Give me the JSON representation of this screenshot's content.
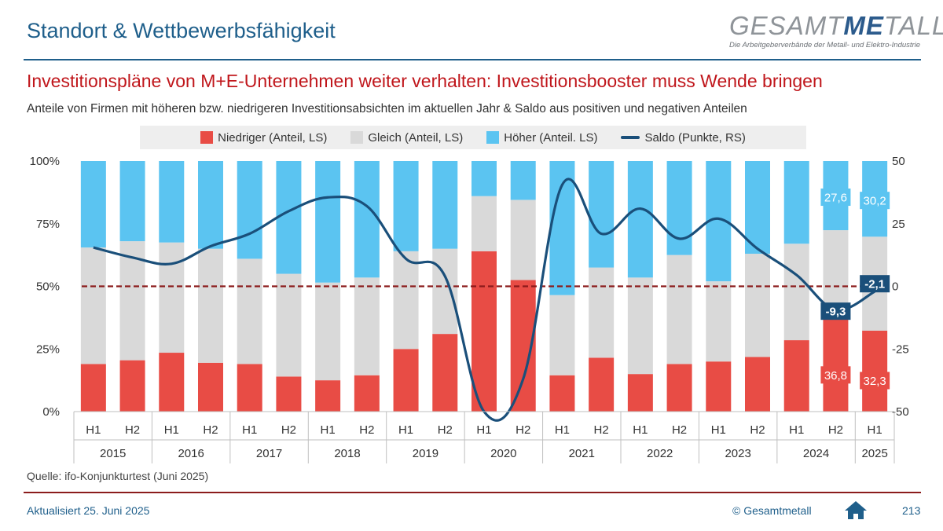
{
  "header": {
    "title": "Standort & Wettbewerbsfähigkeit",
    "logo_main": "GESAMT",
    "logo_me": "ME",
    "logo_end": "TALL",
    "logo_tagline": "Die Arbeitgeberverbände der Metall- und Elektro-Industrie"
  },
  "headline": "Investitionspläne von M+E-Unternehmen weiter verhalten: Investitionsbooster muss Wende bringen",
  "subtitle": "Anteile von Firmen mit höheren bzw. niedrigeren Investitionsabsichten im aktuellen Jahr & Saldo aus positiven und negativen Anteilen",
  "legend": {
    "niedriger": "Niedriger (Anteil, LS)",
    "gleich": "Gleich (Anteil, LS)",
    "hoeher": "Höher (Anteil. LS)",
    "saldo": "Saldo (Punkte, RS)"
  },
  "colors": {
    "niedriger": "#e84c45",
    "gleich": "#d9d9d9",
    "hoeher": "#5bc4f1",
    "saldo": "#1a4f7a",
    "zero_line": "#8b1a1a"
  },
  "chart_data": {
    "type": "bar",
    "stacked": true,
    "categories": [
      "H1",
      "H2",
      "H1",
      "H2",
      "H1",
      "H2",
      "H1",
      "H2",
      "H1",
      "H2",
      "H1",
      "H2",
      "H1",
      "H2",
      "H1",
      "H2",
      "H1",
      "H2",
      "H1",
      "H2",
      "H1"
    ],
    "years": [
      {
        "label": "2015",
        "span": 2
      },
      {
        "label": "2016",
        "span": 2
      },
      {
        "label": "2017",
        "span": 2
      },
      {
        "label": "2018",
        "span": 2
      },
      {
        "label": "2019",
        "span": 2
      },
      {
        "label": "2020",
        "span": 2
      },
      {
        "label": "2021",
        "span": 2
      },
      {
        "label": "2022",
        "span": 2
      },
      {
        "label": "2023",
        "span": 2
      },
      {
        "label": "2024",
        "span": 2
      },
      {
        "label": "2025",
        "span": 1
      }
    ],
    "series": [
      {
        "name": "Niedriger (Anteil, LS)",
        "axis": "left",
        "values": [
          19,
          20.5,
          23.5,
          19.5,
          19,
          14,
          12.5,
          14.5,
          25,
          31,
          64,
          52.5,
          14.5,
          21.5,
          15,
          19,
          20,
          21.8,
          28.5,
          36.8,
          32.3
        ]
      },
      {
        "name": "Gleich (Anteil, LS)",
        "axis": "left",
        "values": [
          46.5,
          47.5,
          44,
          45.5,
          42,
          41,
          39,
          39,
          39,
          34,
          22,
          32,
          32,
          36,
          38.5,
          43.5,
          32,
          41.2,
          38.5,
          35.6,
          37.5
        ]
      },
      {
        "name": "Höher (Anteil. LS)",
        "axis": "left",
        "values": [
          34.5,
          32,
          32.5,
          35,
          39,
          45,
          48.5,
          46.5,
          36,
          35,
          14,
          15.5,
          53.5,
          42.5,
          46.5,
          37.5,
          48,
          37,
          33,
          27.6,
          30.2
        ]
      },
      {
        "name": "Saldo (Punkte, RS)",
        "axis": "right",
        "type": "line",
        "values": [
          15.5,
          11.5,
          9,
          16,
          21,
          30,
          35.5,
          32,
          11,
          4,
          -50,
          -37,
          40.5,
          21,
          31,
          19,
          27,
          15,
          4.5,
          -9.3,
          -2.1
        ]
      }
    ],
    "data_labels": [
      {
        "series": "Höher (Anteil. LS)",
        "index": 19,
        "text": "27,6"
      },
      {
        "series": "Höher (Anteil. LS)",
        "index": 20,
        "text": "30,2"
      },
      {
        "series": "Niedriger (Anteil, LS)",
        "index": 19,
        "text": "36,8"
      },
      {
        "series": "Niedriger (Anteil, LS)",
        "index": 20,
        "text": "32,3"
      },
      {
        "series": "Saldo (Punkte, RS)",
        "index": 19,
        "text": "-9,3"
      },
      {
        "series": "Saldo (Punkte, RS)",
        "index": 20,
        "text": "-2,1"
      }
    ],
    "y_left": {
      "min": 0,
      "max": 100,
      "ticks": [
        "0%",
        "25%",
        "50%",
        "75%",
        "100%"
      ]
    },
    "y_right": {
      "min": -50,
      "max": 50,
      "ticks": [
        "-50",
        "-25",
        "0",
        "25",
        "50"
      ]
    },
    "reference_line": {
      "axis": "right",
      "value": 0,
      "style": "dashed"
    }
  },
  "footer": {
    "source": "Quelle:  ifo-Konjunkturtest  (Juni 2025)",
    "updated": "Aktualisiert 25. Juni 2025",
    "copyright": "© Gesamtmetall",
    "page": "213"
  }
}
